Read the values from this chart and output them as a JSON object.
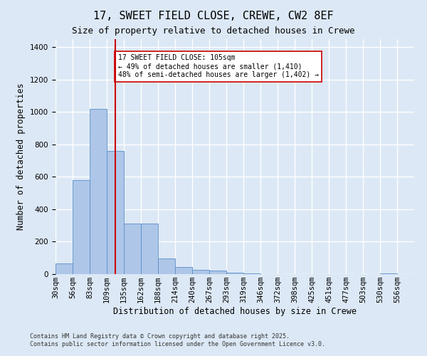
{
  "title": "17, SWEET FIELD CLOSE, CREWE, CW2 8EF",
  "subtitle": "Size of property relative to detached houses in Crewe",
  "xlabel": "Distribution of detached houses by size in Crewe",
  "ylabel": "Number of detached properties",
  "bar_values": [
    65,
    580,
    1020,
    760,
    310,
    310,
    95,
    45,
    25,
    20,
    10,
    5,
    0,
    0,
    0,
    0,
    0,
    0,
    0,
    5,
    0
  ],
  "bin_labels": [
    "30sqm",
    "56sqm",
    "83sqm",
    "109sqm",
    "135sqm",
    "162sqm",
    "188sqm",
    "214sqm",
    "240sqm",
    "267sqm",
    "293sqm",
    "319sqm",
    "346sqm",
    "372sqm",
    "398sqm",
    "425sqm",
    "451sqm",
    "477sqm",
    "503sqm",
    "530sqm",
    "556sqm"
  ],
  "n_bins": 21,
  "bar_color": "#aec6e8",
  "bar_edge_color": "#5b8fc9",
  "vline_x_bin": 3,
  "vline_color": "#cc0000",
  "ylim_max": 1450,
  "annotation_text": "17 SWEET FIELD CLOSE: 105sqm\n← 49% of detached houses are smaller (1,410)\n48% of semi-detached houses are larger (1,402) →",
  "annotation_box_facecolor": "#ffffff",
  "annotation_box_edgecolor": "#cc0000",
  "footnote1": "Contains HM Land Registry data © Crown copyright and database right 2025.",
  "footnote2": "Contains public sector information licensed under the Open Government Licence v3.0.",
  "background_color": "#dce8f5",
  "grid_color": "#ffffff",
  "title_fontsize": 11,
  "subtitle_fontsize": 9,
  "tick_fontsize": 7.5,
  "ylabel_fontsize": 8.5,
  "xlabel_fontsize": 8.5,
  "footnote_fontsize": 6
}
